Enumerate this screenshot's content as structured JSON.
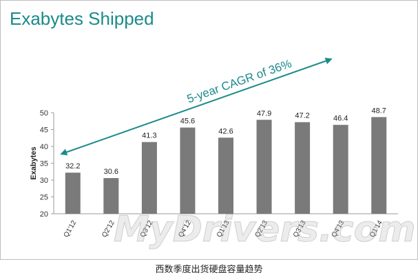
{
  "title": "Exabytes Shipped",
  "caption": "西数季度出货硬盘容量趋势",
  "watermark": "MyDrivers.com",
  "colors": {
    "bar": "#7a7a7a",
    "title": "#1b8a8a",
    "arrow": "#1b8a8a"
  },
  "chart_data": {
    "type": "bar",
    "title": "Exabytes Shipped",
    "xlabel": "",
    "ylabel": "Exabytes",
    "ylim": [
      20,
      50
    ],
    "yticks": [
      20,
      25,
      30,
      35,
      40,
      45,
      50
    ],
    "categories": [
      "Q1'12",
      "Q2'12",
      "Q3'12",
      "Q4'12",
      "Q1'13",
      "Q2'13",
      "Q3'13",
      "Q4'13",
      "Q1'14"
    ],
    "values": [
      32.2,
      30.6,
      41.3,
      45.6,
      42.6,
      47.9,
      47.2,
      46.4,
      48.7
    ],
    "grid": false,
    "annotation": "5-year CAGR of 36%"
  }
}
